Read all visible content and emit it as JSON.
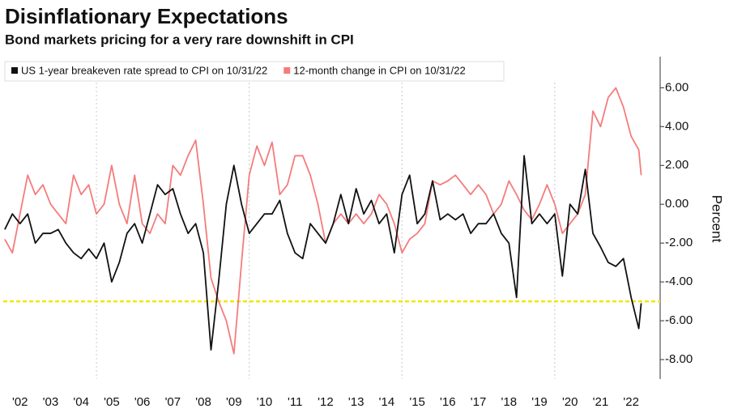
{
  "chart_data": {
    "type": "line",
    "title": "Disinflationary Expectations",
    "subtitle": "Bond markets pricing for a very rare downshift in CPI",
    "y_label": "Percent",
    "x": [
      2002,
      2002.25,
      2002.5,
      2002.75,
      2003,
      2003.25,
      2003.5,
      2003.75,
      2004,
      2004.25,
      2004.5,
      2004.75,
      2005,
      2005.25,
      2005.5,
      2005.75,
      2006,
      2006.25,
      2006.5,
      2006.75,
      2007,
      2007.25,
      2007.5,
      2007.75,
      2008,
      2008.25,
      2008.5,
      2008.75,
      2009,
      2009.25,
      2009.5,
      2009.75,
      2010,
      2010.25,
      2010.5,
      2010.75,
      2011,
      2011.25,
      2011.5,
      2011.75,
      2012,
      2012.25,
      2012.5,
      2012.75,
      2013,
      2013.25,
      2013.5,
      2013.75,
      2014,
      2014.25,
      2014.5,
      2014.75,
      2015,
      2015.25,
      2015.5,
      2015.75,
      2016,
      2016.25,
      2016.5,
      2016.75,
      2017,
      2017.25,
      2017.5,
      2017.75,
      2018,
      2018.25,
      2018.5,
      2018.75,
      2019,
      2019.25,
      2019.5,
      2019.75,
      2020,
      2020.25,
      2020.5,
      2020.75,
      2021,
      2021.25,
      2021.5,
      2021.75,
      2022,
      2022.25,
      2022.5,
      2022.75,
      2022.83
    ],
    "series": [
      {
        "name": "US 1-year breakeven rate spread to CPI on 10/31/22",
        "color": "#111111",
        "values": [
          -1.3,
          -0.5,
          -1.0,
          -0.5,
          -2.0,
          -1.5,
          -1.5,
          -1.3,
          -2.0,
          -2.5,
          -2.8,
          -2.3,
          -2.8,
          -2.0,
          -4.0,
          -3.0,
          -1.5,
          -1.0,
          -2.0,
          -0.5,
          1.0,
          0.5,
          0.8,
          -0.5,
          -1.5,
          -1.0,
          -2.5,
          -7.5,
          -4.0,
          0.0,
          2.0,
          0.0,
          -1.5,
          -1.0,
          -0.5,
          -0.5,
          0.2,
          -1.5,
          -2.5,
          -2.8,
          -1.0,
          -1.5,
          -2.0,
          -1.0,
          0.5,
          -1.0,
          0.8,
          -0.5,
          0.2,
          -1.0,
          -0.5,
          -2.5,
          0.5,
          1.5,
          -1.0,
          -0.5,
          1.2,
          -0.8,
          -0.5,
          -0.8,
          -0.5,
          -1.5,
          -1.0,
          -1.0,
          -0.5,
          -1.5,
          -2.0,
          -4.8,
          2.5,
          -1.0,
          -0.5,
          -1.0,
          -0.5,
          -3.7,
          0.0,
          -0.5,
          1.8,
          -1.5,
          -2.2,
          -3.0,
          -3.2,
          -2.8,
          -4.8,
          -6.4,
          -5.1
        ]
      },
      {
        "name": "12-month change in CPI on 10/31/22",
        "color": "#f47c7c",
        "values": [
          -1.8,
          -2.5,
          -0.5,
          1.5,
          0.5,
          1.0,
          0.0,
          -0.5,
          -1.0,
          1.5,
          0.5,
          1.0,
          -0.5,
          0.0,
          2.0,
          0.0,
          -1.0,
          1.5,
          -1.0,
          -1.5,
          -0.5,
          -1.0,
          2.0,
          1.5,
          2.5,
          3.3,
          0.0,
          -3.8,
          -5.0,
          -6.0,
          -7.7,
          -3.0,
          1.5,
          3.0,
          2.0,
          3.2,
          0.5,
          1.0,
          2.5,
          2.5,
          1.5,
          0.0,
          -2.0,
          -1.0,
          -0.5,
          -1.0,
          -0.5,
          -1.0,
          -0.5,
          0.5,
          0.0,
          -1.0,
          -2.5,
          -1.8,
          -1.5,
          -1.0,
          1.2,
          1.0,
          1.2,
          1.5,
          1.0,
          0.5,
          1.0,
          0.5,
          -0.5,
          0.0,
          1.2,
          0.5,
          -0.3,
          -0.8,
          0.0,
          1.0,
          0.0,
          -1.5,
          -1.0,
          -0.5,
          0.5,
          4.8,
          4.0,
          5.5,
          6.0,
          5.0,
          3.5,
          2.8,
          1.5
        ]
      }
    ],
    "xlim": [
      2001.95,
      2023.45
    ],
    "xticks": [
      {
        "value": 2002.5,
        "label": "'02"
      },
      {
        "value": 2003.5,
        "label": "'03"
      },
      {
        "value": 2004.5,
        "label": "'04"
      },
      {
        "value": 2005.5,
        "label": "'05"
      },
      {
        "value": 2006.5,
        "label": "'06"
      },
      {
        "value": 2007.5,
        "label": "'07"
      },
      {
        "value": 2008.5,
        "label": "'08"
      },
      {
        "value": 2009.5,
        "label": "'09"
      },
      {
        "value": 2010.5,
        "label": "'10"
      },
      {
        "value": 2011.5,
        "label": "'11"
      },
      {
        "value": 2012.5,
        "label": "'12"
      },
      {
        "value": 2013.5,
        "label": "'13"
      },
      {
        "value": 2014.5,
        "label": "'14"
      },
      {
        "value": 2015.5,
        "label": "'15"
      },
      {
        "value": 2016.5,
        "label": "'16"
      },
      {
        "value": 2017.5,
        "label": "'17"
      },
      {
        "value": 2018.5,
        "label": "'18"
      },
      {
        "value": 2019.5,
        "label": "'19"
      },
      {
        "value": 2020.5,
        "label": "'20"
      },
      {
        "value": 2021.5,
        "label": "'21"
      },
      {
        "value": 2022.5,
        "label": "'22"
      }
    ],
    "xgrid": [
      2005,
      2010,
      2015,
      2020
    ],
    "ylim": [
      -9,
      7.6
    ],
    "yticks": [
      {
        "value": 6,
        "label": "6.00"
      },
      {
        "value": 4,
        "label": "4.00"
      },
      {
        "value": 2,
        "label": "2.00"
      },
      {
        "value": 0,
        "label": "0.00"
      },
      {
        "value": -2,
        "label": "-2.00"
      },
      {
        "value": -4,
        "label": "-4.00"
      },
      {
        "value": -6,
        "label": "-6.00"
      },
      {
        "value": -8,
        "label": "-8.00"
      }
    ],
    "y_axis_side": "right",
    "hline": {
      "value": -5,
      "color": "#f2e600"
    }
  }
}
